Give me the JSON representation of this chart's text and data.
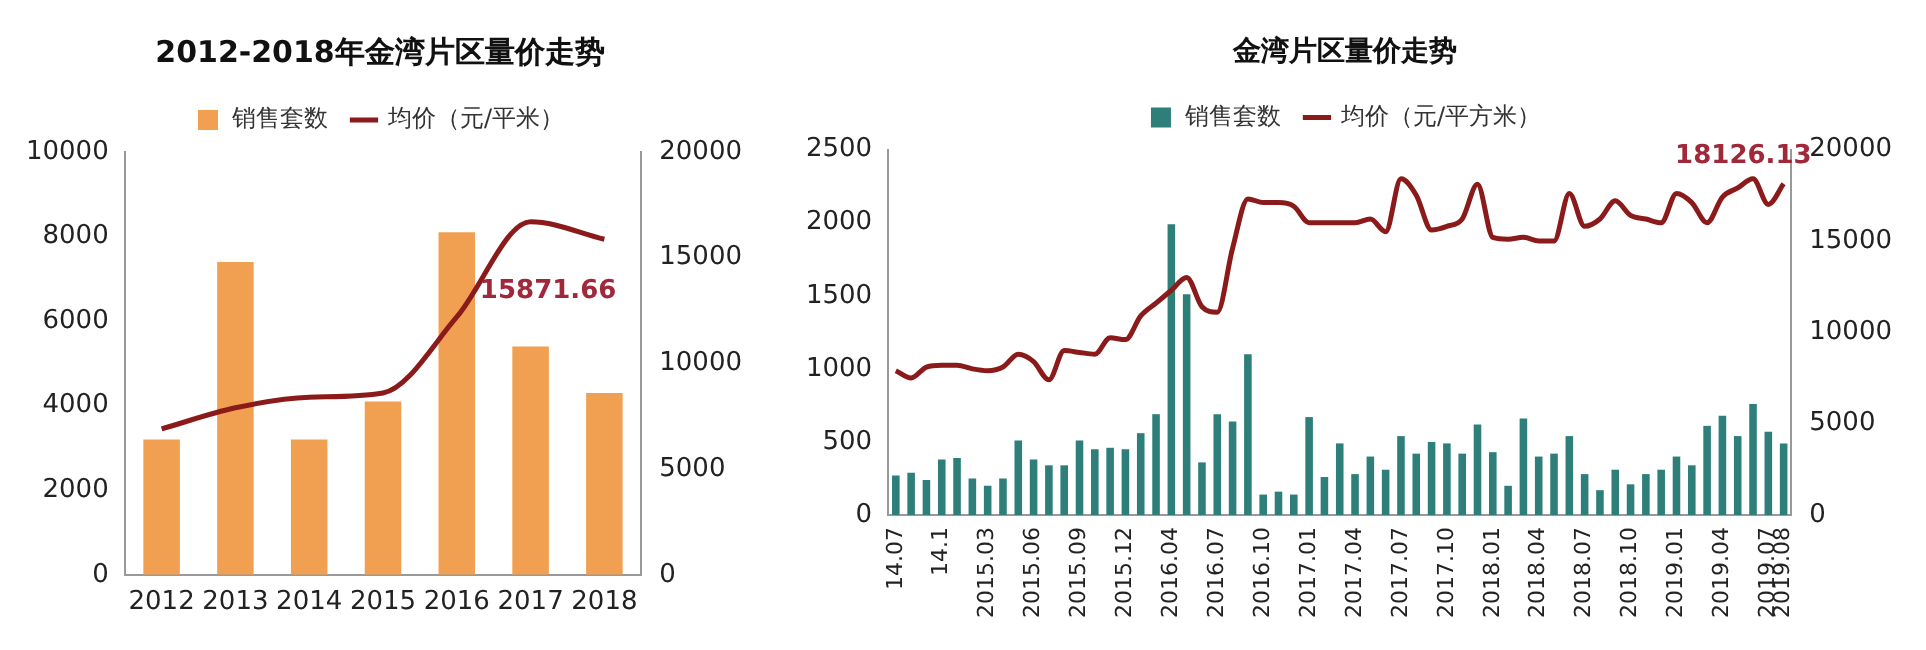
{
  "chart_data": [
    {
      "type": "bar",
      "title": "2012-2018年金湾片区量价走势",
      "categories": [
        "2012",
        "2013",
        "2014",
        "2015",
        "2016",
        "2017",
        "2018"
      ],
      "series": [
        {
          "name": "销售套数",
          "color": "#f0a050",
          "values": [
            3200,
            7400,
            3200,
            4100,
            8100,
            5400,
            4300
          ]
        },
        {
          "name": "均价（元/平米）",
          "type": "line",
          "axis": "y2",
          "color": "#8b1a1a",
          "values": [
            6900,
            7900,
            8400,
            8600,
            12200,
            16700,
            15871.66
          ]
        }
      ],
      "ylim": [
        0,
        10000
      ],
      "yticks": [
        0,
        2000,
        4000,
        6000,
        8000,
        10000
      ],
      "y2lim": [
        0,
        20000
      ],
      "y2ticks": [
        0,
        5000,
        10000,
        15000,
        20000
      ],
      "legend": "top",
      "grid": false,
      "marker": "none",
      "annotations": [
        "15871.66"
      ]
    },
    {
      "type": "bar",
      "title": "金湾片区量价走势",
      "categories": [
        "14.07",
        null,
        null,
        "14.1",
        null,
        null,
        "2015.03",
        null,
        null,
        "2015.06",
        null,
        null,
        "2015.09",
        null,
        null,
        "2015.12",
        null,
        null,
        "2016.04",
        null,
        null,
        "2016.07",
        null,
        null,
        "2016.10",
        null,
        null,
        "2017.01",
        null,
        null,
        "2017.04",
        null,
        null,
        "2017.07",
        null,
        null,
        "2017.10",
        null,
        null,
        "2018.01",
        null,
        null,
        "2018.04",
        null,
        null,
        "2018.07",
        null,
        null,
        "2018.10",
        null,
        null,
        "2019.01",
        null,
        null,
        "2019.04",
        null,
        null,
        "2019.07",
        "2019.08"
      ],
      "series": [
        {
          "name": "销售套数",
          "color": "#2e7f7a",
          "values": [
            270,
            290,
            240,
            380,
            390,
            250,
            200,
            250,
            510,
            380,
            340,
            340,
            510,
            450,
            460,
            450,
            560,
            690,
            1990,
            1510,
            360,
            690,
            640,
            1100,
            140,
            160,
            140,
            670,
            260,
            490,
            280,
            400,
            310,
            540,
            420,
            500,
            490,
            420,
            620,
            430,
            200,
            660,
            400,
            420,
            540,
            280,
            170,
            310,
            210,
            280,
            310,
            400,
            340,
            610,
            680,
            540,
            760,
            570,
            490
          ]
        },
        {
          "name": "均价（元/平方米）",
          "type": "line",
          "axis": "y2",
          "color": "#8b1a1a",
          "values": [
            7900,
            7500,
            8100,
            8200,
            8200,
            8000,
            7900,
            8100,
            8800,
            8400,
            7400,
            9000,
            8900,
            8800,
            9700,
            9600,
            10900,
            11600,
            12300,
            13000,
            11400,
            11100,
            14600,
            17300,
            17100,
            17100,
            16900,
            16000,
            16000,
            16000,
            16000,
            16200,
            15500,
            18400,
            17500,
            15600,
            15800,
            16200,
            18100,
            15200,
            15100,
            15200,
            15000,
            15000,
            17600,
            15800,
            16200,
            17200,
            16400,
            16200,
            16000,
            17600,
            17100,
            16000,
            17400,
            17900,
            18400,
            17000,
            18126.13
          ]
        }
      ],
      "ylim": [
        0,
        2500
      ],
      "yticks": [
        0,
        500,
        1000,
        1500,
        2000,
        2500
      ],
      "y2lim": [
        0,
        20000
      ],
      "y2ticks": [
        0,
        5000,
        10000,
        15000,
        20000
      ],
      "legend": "top",
      "grid": false,
      "marker": "none",
      "annotations": [
        "18126.13"
      ]
    }
  ]
}
